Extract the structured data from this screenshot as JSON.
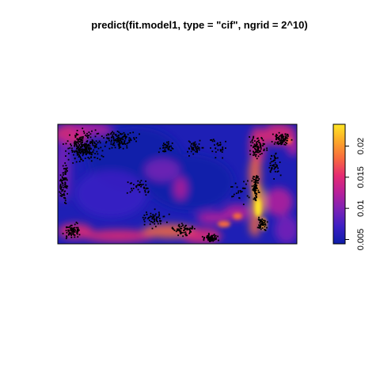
{
  "chart_data": {
    "type": "heatmap",
    "title": "predict(fit.model1, type = \"cif\", ngrid = 2^10)",
    "xlabel": "",
    "ylabel": "",
    "color_scale": {
      "range": [
        0.0043,
        0.0235
      ],
      "ticks": [
        {
          "value": 0.005,
          "label": "0.005"
        },
        {
          "value": 0.01,
          "label": "0.01"
        },
        {
          "value": 0.015,
          "label": "0.015"
        },
        {
          "value": 0.02,
          "label": "0.02"
        }
      ],
      "palette": [
        "#0D1DA8",
        "#3B1FC4",
        "#7A22B6",
        "#B8209A",
        "#E52B72",
        "#F86A3E",
        "#FCA72A",
        "#FFE625"
      ],
      "orientation": "vertical",
      "placement": "right"
    },
    "overlay": {
      "type": "scatter",
      "marker_color": "#000000",
      "description": "dense black point pattern overlaid on the intensity surface"
    },
    "grid": false,
    "axes_visible": false
  }
}
